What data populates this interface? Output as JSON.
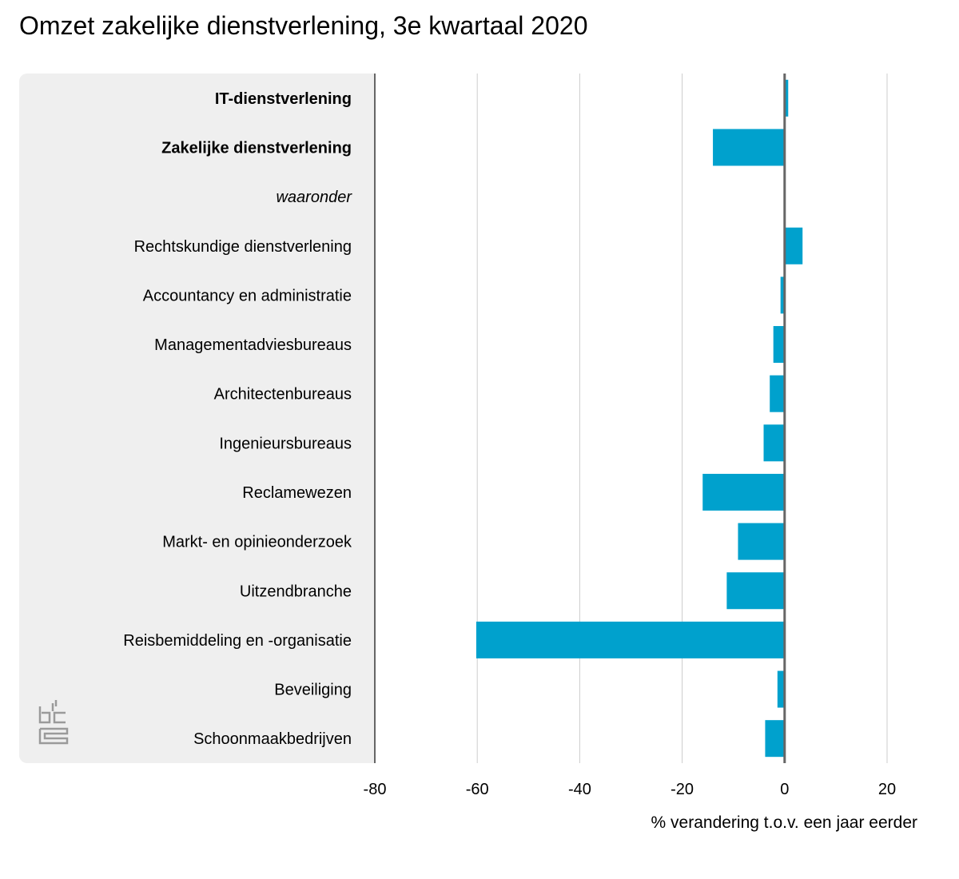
{
  "chart_data": {
    "type": "bar",
    "orientation": "horizontal",
    "title": "Omzet zakelijke dienstverlening, 3e kwartaal 2020",
    "xlabel": "% verandering t.o.v. een jaar eerder",
    "ylabel": "",
    "xlim": [
      -80,
      25
    ],
    "xticks": [
      -80,
      -60,
      -40,
      -20,
      0,
      20
    ],
    "grid": true,
    "bar_color": "#00a1cd",
    "categories": [
      {
        "label": "IT-dienstverlening",
        "style": "bold",
        "value": 0.7
      },
      {
        "label": "Zakelijke dienstverlening",
        "style": "bold",
        "value": -14
      },
      {
        "label": "waaronder",
        "style": "italic",
        "value": null
      },
      {
        "label": "Rechtskundige dienstverlening",
        "style": "normal",
        "value": 3.5
      },
      {
        "label": "Accountancy en administratie",
        "style": "normal",
        "value": -0.8
      },
      {
        "label": "Managementadviesbureaus",
        "style": "normal",
        "value": -2.2
      },
      {
        "label": "Architectenbureaus",
        "style": "normal",
        "value": -2.9
      },
      {
        "label": "Ingenieursbureaus",
        "style": "normal",
        "value": -4.1
      },
      {
        "label": "Reclamewezen",
        "style": "normal",
        "value": -16
      },
      {
        "label": "Markt- en opinieonderzoek",
        "style": "normal",
        "value": -9.1
      },
      {
        "label": "Uitzendbranche",
        "style": "normal",
        "value": -11.3
      },
      {
        "label": "Reisbemiddeling en -organisatie",
        "style": "normal",
        "value": -60.2
      },
      {
        "label": "Beveiliging",
        "style": "normal",
        "value": -1.4
      },
      {
        "label": "Schoonmaakbedrijven",
        "style": "normal",
        "value": -3.8
      }
    ]
  },
  "logo": {
    "name": "cbs"
  }
}
